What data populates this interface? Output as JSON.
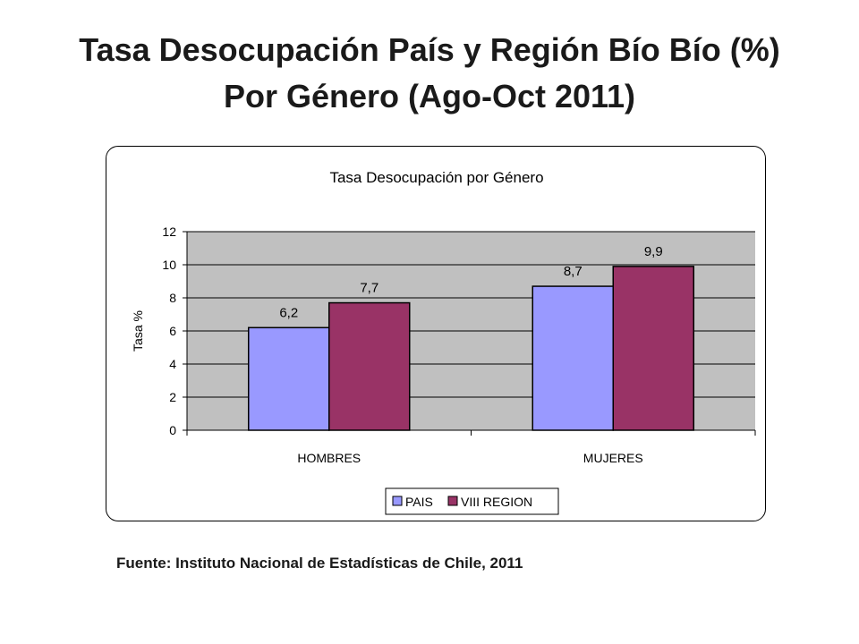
{
  "slide": {
    "title_line1": "Tasa Desocupación País y Región Bío Bío (%)",
    "title_line2": "Por Género (Ago-Oct 2011)",
    "source": "Fuente: Instituto Nacional de Estadísticas de Chile, 2011"
  },
  "chart_data": {
    "type": "bar",
    "title": "Tasa Desocupación por Género",
    "xlabel": "",
    "ylabel": "Tasa %",
    "categories": [
      "HOMBRES",
      "MUJERES"
    ],
    "series": [
      {
        "name": "PAIS",
        "values": [
          6.2,
          8.7
        ],
        "labels": [
          "6,2",
          "8,7"
        ],
        "color": "#9999ff"
      },
      {
        "name": "VIII REGION",
        "values": [
          7.7,
          9.9
        ],
        "labels": [
          "7,7",
          "9,9"
        ],
        "color": "#993366"
      }
    ],
    "ylim": [
      0,
      12
    ],
    "yticks": [
      0,
      2,
      4,
      6,
      8,
      10,
      12
    ],
    "grid": true,
    "plot_background": "#c0c0c0",
    "legend_position": "bottom"
  }
}
